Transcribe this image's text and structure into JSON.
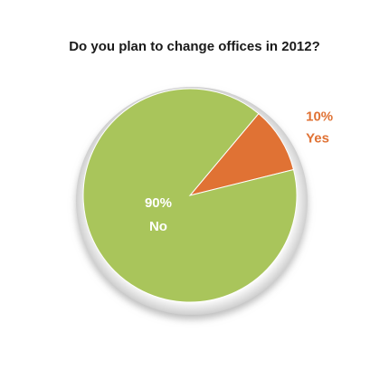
{
  "chart_data": {
    "type": "pie",
    "title": "Do you plan to change offices in 2012?",
    "categories": [
      "No",
      "Yes"
    ],
    "values": [
      90,
      10
    ],
    "value_labels": [
      "90%",
      "10%"
    ],
    "colors": [
      "#a9c55b",
      "#e07234"
    ]
  }
}
